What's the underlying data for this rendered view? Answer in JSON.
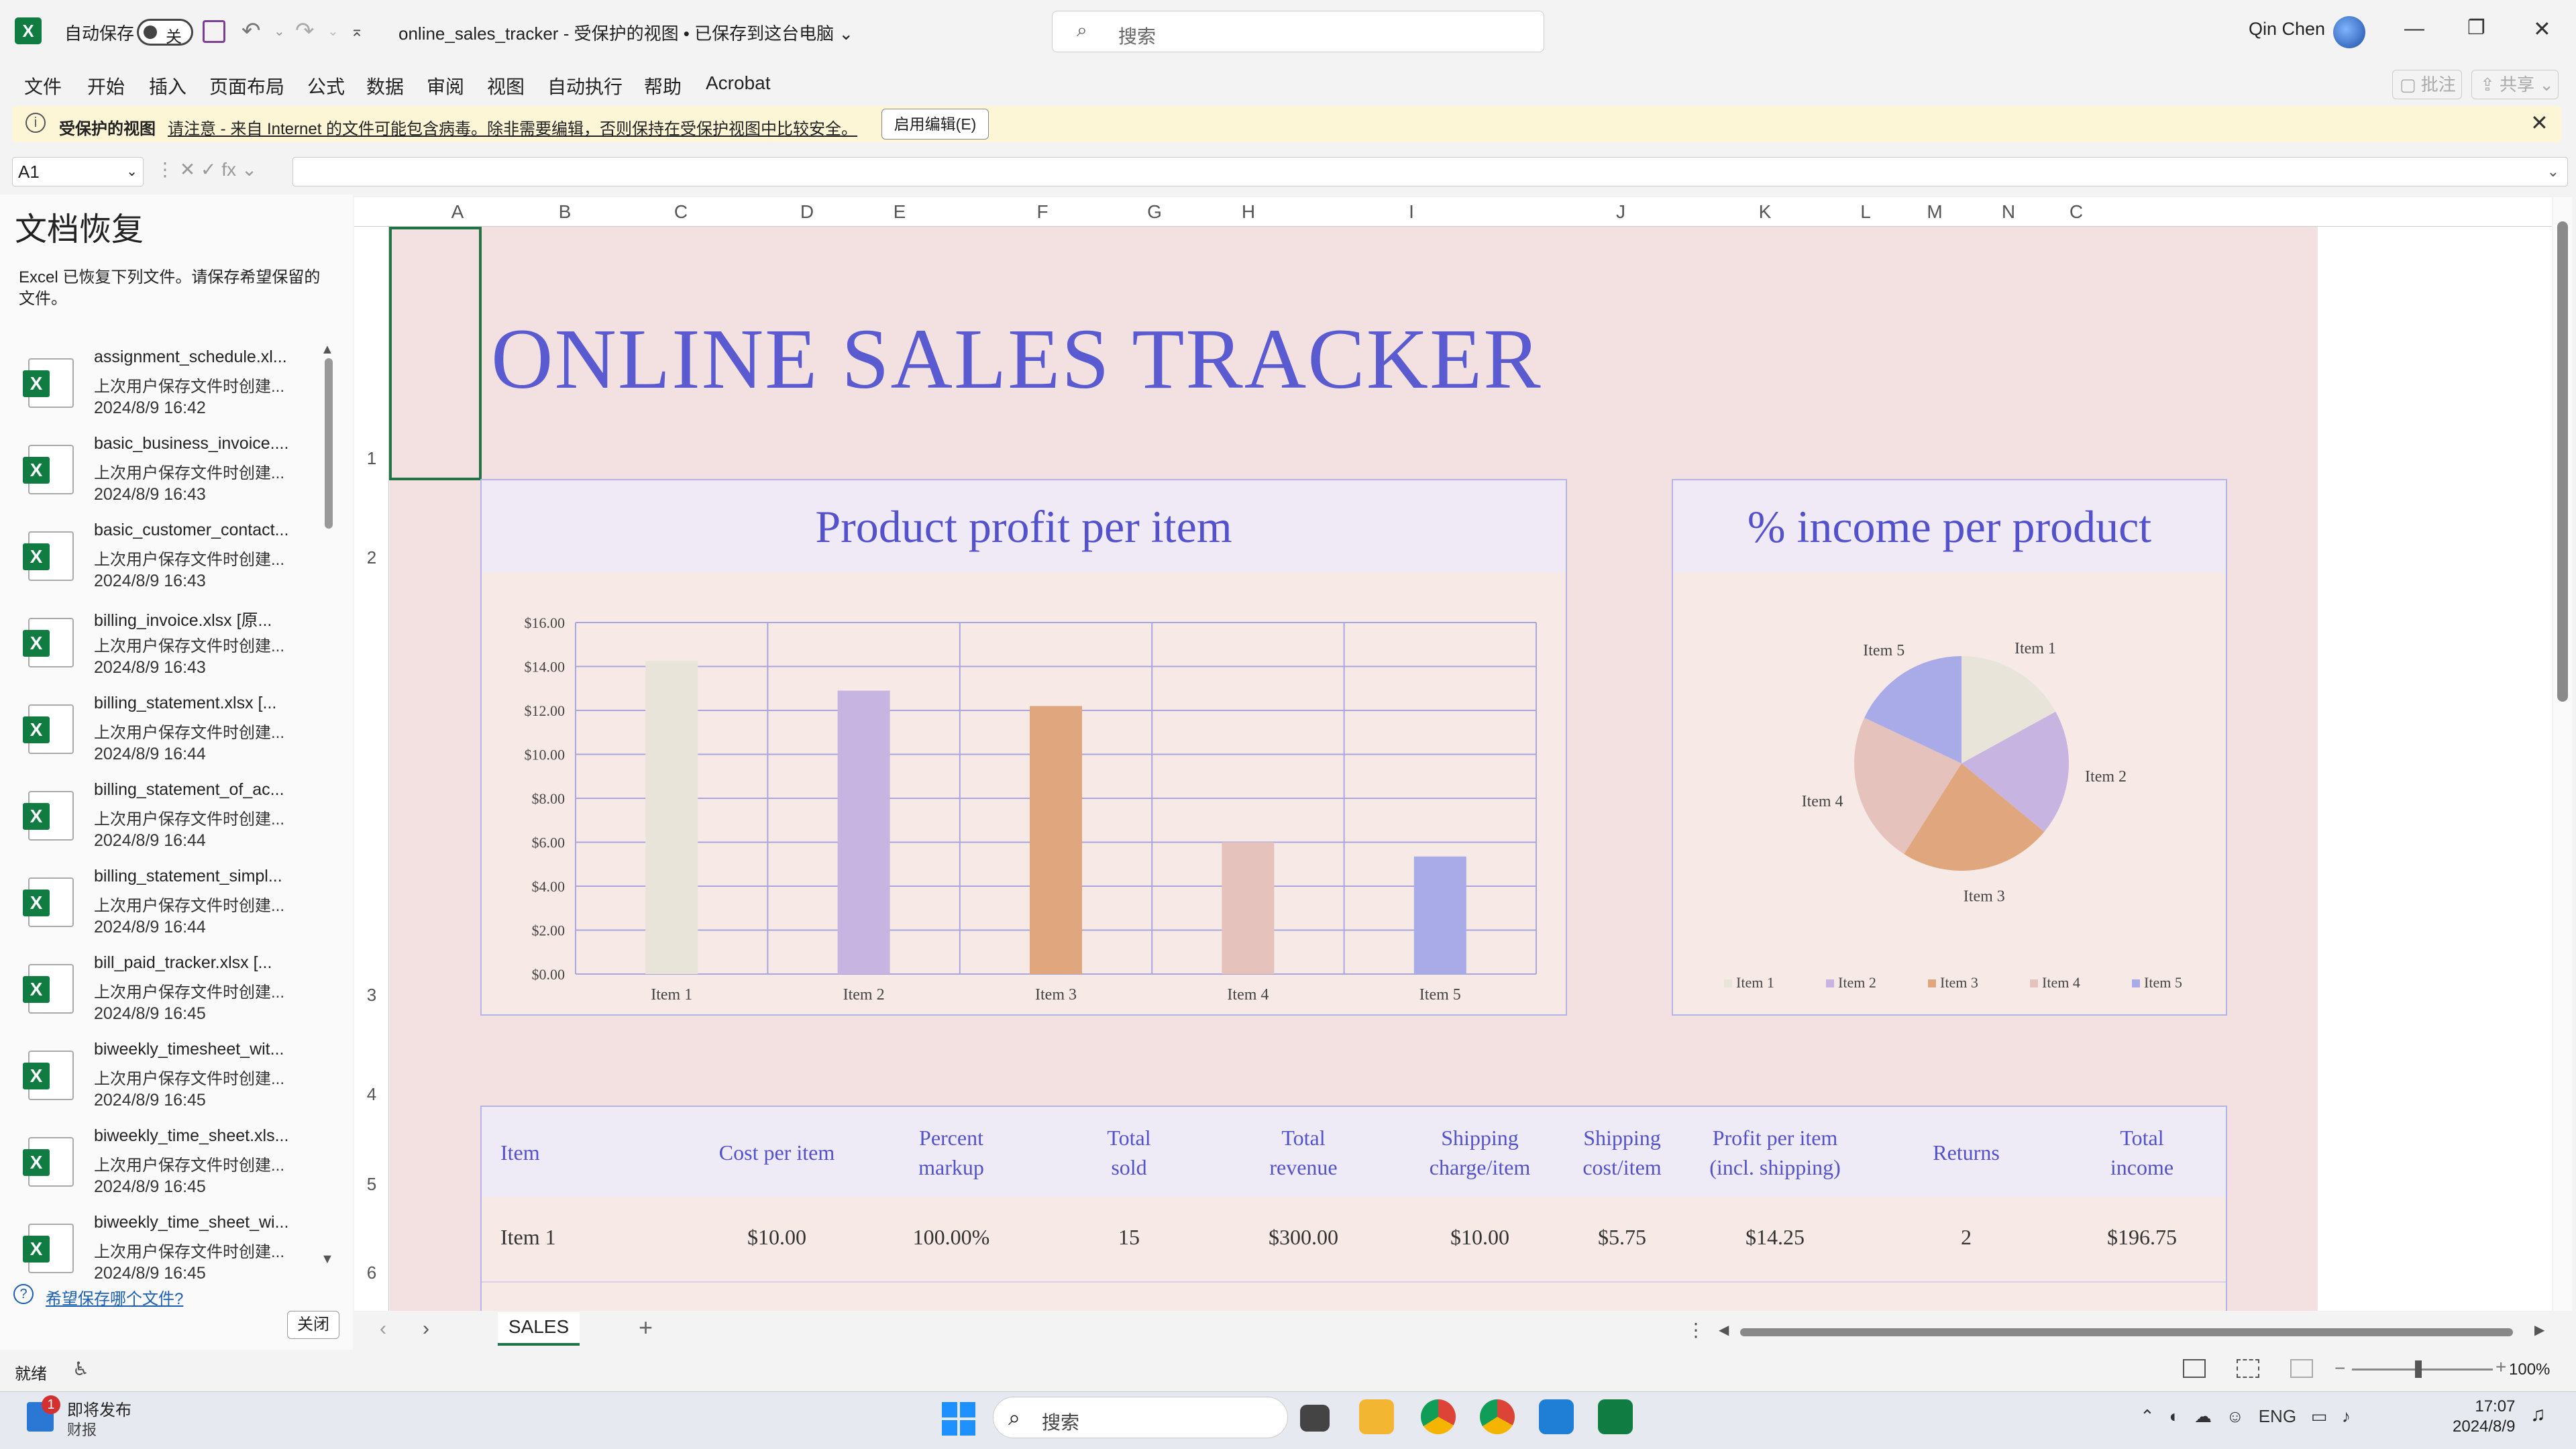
{
  "app": {
    "icon_letter": "X"
  },
  "titlebar": {
    "autosave_label": "自动保存",
    "autosave_state": "关",
    "doc_title": "online_sales_tracker  -  受保护的视图 • 已保存到这台电脑",
    "title_dd": "⌄",
    "search_placeholder": "搜索",
    "user_name": "Qin Chen"
  },
  "menu": [
    "文件",
    "开始",
    "插入",
    "页面布局",
    "公式",
    "数据",
    "审阅",
    "视图",
    "自动执行",
    "帮助",
    "Acrobat"
  ],
  "menu_right": {
    "comment": "▢ 批注",
    "share": "⇪ 共享 ⌄"
  },
  "protected": {
    "bold": "受保护的视图",
    "message": "请注意 - 来自 Internet 的文件可能包含病毒。除非需要编辑，否则保持在受保护视图中比较安全。",
    "enable_button": "启用编辑(E)"
  },
  "formula": {
    "namebox": "A1",
    "fx_icons": "⋮  ✕  ✓  fx ⌄",
    "value": ""
  },
  "recovery": {
    "title": "文档恢复",
    "desc": "Excel 已恢复下列文件。请保存希望保留的文件。",
    "items": [
      {
        "name": "assignment_schedule.xl...",
        "status": "上次用户保存文件时创建...",
        "date": "2024/8/9 16:42"
      },
      {
        "name": "basic_business_invoice....",
        "status": "上次用户保存文件时创建...",
        "date": "2024/8/9 16:43"
      },
      {
        "name": "basic_customer_contact...",
        "status": "上次用户保存文件时创建...",
        "date": "2024/8/9 16:43"
      },
      {
        "name": "billing_invoice.xlsx  [原...",
        "status": "上次用户保存文件时创建...",
        "date": "2024/8/9 16:43"
      },
      {
        "name": "billing_statement.xlsx  [...",
        "status": "上次用户保存文件时创建...",
        "date": "2024/8/9 16:44"
      },
      {
        "name": "billing_statement_of_ac...",
        "status": "上次用户保存文件时创建...",
        "date": "2024/8/9 16:44"
      },
      {
        "name": "billing_statement_simpl...",
        "status": "上次用户保存文件时创建...",
        "date": "2024/8/9 16:44"
      },
      {
        "name": "bill_paid_tracker.xlsx  [...",
        "status": "上次用户保存文件时创建...",
        "date": "2024/8/9 16:45"
      },
      {
        "name": "biweekly_timesheet_wit...",
        "status": "上次用户保存文件时创建...",
        "date": "2024/8/9 16:45"
      },
      {
        "name": "biweekly_time_sheet.xls...",
        "status": "上次用户保存文件时创建...",
        "date": "2024/8/9 16:45"
      },
      {
        "name": "biweekly_time_sheet_wi...",
        "status": "上次用户保存文件时创建...",
        "date": "2024/8/9 16:45"
      }
    ],
    "question": "希望保存哪个文件?",
    "close_button": "关闭"
  },
  "grid": {
    "columns": [
      "A",
      "B",
      "C",
      "D",
      "E",
      "F",
      "G",
      "H",
      "I",
      "J",
      "K",
      "L",
      "M",
      "N",
      "C"
    ],
    "rows": [
      "1",
      "2",
      "3",
      "4",
      "5",
      "6"
    ]
  },
  "sheet": {
    "title": "ONLINE SALES TRACKER",
    "bar_card_title": "Product profit per item",
    "pie_card_title": "% income per product"
  },
  "chart_data": [
    {
      "type": "bar",
      "title": "Product profit per item",
      "categories": [
        "Item 1",
        "Item 2",
        "Item 3",
        "Item 4",
        "Item 5"
      ],
      "values": [
        14.25,
        12.9,
        12.2,
        6.0,
        5.35
      ],
      "colors": [
        "#e9e4da",
        "#c8b4e1",
        "#e0a67d",
        "#e6c2bd",
        "#a8abe8"
      ],
      "yticks": [
        "$0.00",
        "$2.00",
        "$4.00",
        "$6.00",
        "$8.00",
        "$10.00",
        "$12.00",
        "$14.00",
        "$16.00"
      ],
      "ylim": [
        0,
        16
      ],
      "grid": true
    },
    {
      "type": "pie",
      "title": "% income per product",
      "labels": [
        "Item 1",
        "Item 2",
        "Item 3",
        "Item 4",
        "Item 5"
      ],
      "values": [
        17,
        19,
        23,
        23,
        18
      ],
      "colors": [
        "#e9e4da",
        "#c8b4e1",
        "#e0a67d",
        "#e6c2bd",
        "#a8abe8"
      ],
      "legend": "bottom"
    }
  ],
  "table": {
    "headers": [
      "Item",
      "Cost per item",
      "Percent\nmarkup",
      "Total\nsold",
      "Total\nrevenue",
      "Shipping\ncharge/item",
      "Shipping\ncost/item",
      "Profit per item\n(incl. shipping)",
      "Returns",
      "Total\nincome"
    ],
    "rows": [
      [
        "Item 1",
        "$10.00",
        "100.00%",
        "15",
        "$300.00",
        "$10.00",
        "$5.75",
        "$14.25",
        "2",
        "$196.75"
      ]
    ]
  },
  "tabs": {
    "sheet_name": "SALES",
    "add": "+",
    "prev": "‹",
    "next": "›"
  },
  "status": {
    "ready": "就绪",
    "zoom": "100%"
  },
  "taskbar": {
    "news_title": "即将发布",
    "news_sub": "财报",
    "news_badge": "1",
    "search": "搜索",
    "lang": "ENG",
    "time": "17:07",
    "date": "2024/8/9"
  }
}
